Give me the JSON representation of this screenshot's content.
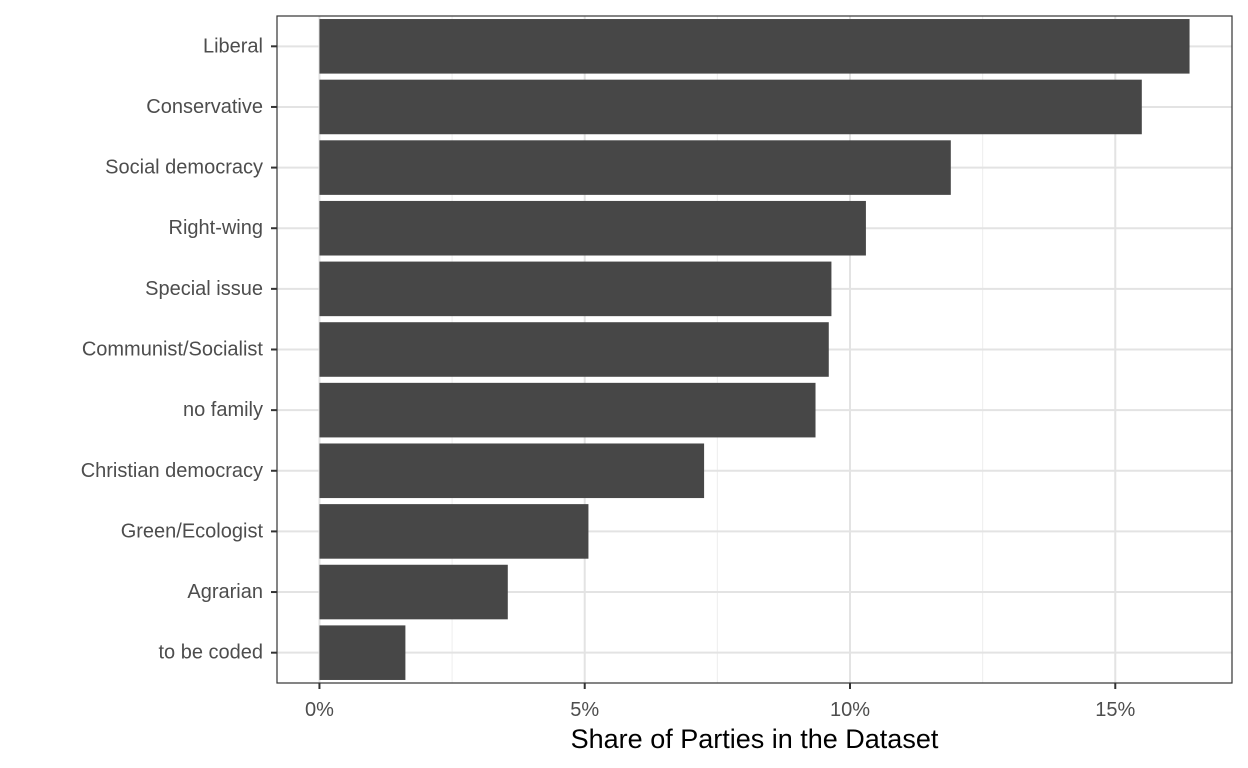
{
  "chart_data": {
    "type": "bar",
    "orientation": "horizontal",
    "categories": [
      "Liberal",
      "Conservative",
      "Social democracy",
      "Right-wing",
      "Special issue",
      "Communist/Socialist",
      "no family",
      "Christian democracy",
      "Green/Ecologist",
      "Agrarian",
      "to be coded"
    ],
    "values": [
      16.4,
      15.5,
      11.9,
      10.3,
      9.65,
      9.6,
      9.35,
      7.25,
      5.07,
      3.55,
      1.62
    ],
    "value_unit": "%",
    "title": "",
    "xlabel": "Share of Parties in the Dataset",
    "ylabel": "",
    "xlim": [
      -0.8,
      17.2
    ],
    "x_ticks": [
      0,
      5,
      10,
      15
    ],
    "x_tick_labels": [
      "0%",
      "5%",
      "10%",
      "15%"
    ],
    "grid": true,
    "legend": "none",
    "colors": {
      "bar": "#474747",
      "grid_major": "#e3e3e3",
      "grid_minor": "#f0f0f0",
      "panel_border": "#333333",
      "tick_label": "#4d4d4d"
    }
  }
}
